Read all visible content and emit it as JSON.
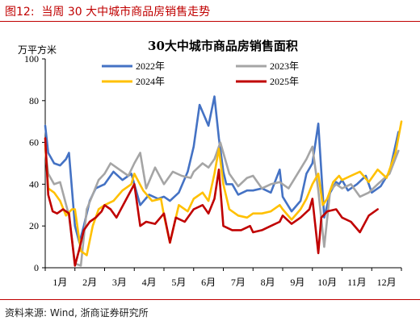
{
  "figure": {
    "label": "图12:  当周 30 大中城市商品房销售走势",
    "source": "资料来源:  Wind, 浙商证券研究所"
  },
  "colors": {
    "accent": "#c00000",
    "s2022": "#4472c4",
    "s2023": "#a5a5a5",
    "s2024": "#ffc000",
    "s2025": "#c00000"
  },
  "chart_data": {
    "type": "line",
    "title": "30大中城市商品房销售面积",
    "ylabel": "万平方米",
    "ylim": [
      0,
      100
    ],
    "yticks": [
      0,
      20,
      40,
      60,
      80,
      100
    ],
    "xlim": [
      1,
      13
    ],
    "xticks": [
      "1月",
      "2月",
      "3月",
      "4月",
      "5月",
      "6月",
      "7月",
      "8月",
      "9月",
      "10月",
      "11月",
      "12月"
    ],
    "grid": false,
    "legend": "top-center",
    "series": [
      {
        "name": "2022年",
        "x": [
          1.0,
          1.1,
          1.3,
          1.5,
          1.7,
          1.8,
          2.0,
          2.15,
          2.3,
          2.5,
          2.7,
          3.0,
          3.3,
          3.6,
          3.9,
          4.0,
          4.2,
          4.5,
          4.8,
          5.0,
          5.2,
          5.5,
          5.8,
          6.0,
          6.2,
          6.5,
          6.7,
          6.85,
          7.0,
          7.1,
          7.3,
          7.5,
          7.8,
          8.0,
          8.3,
          8.6,
          8.9,
          9.0,
          9.3,
          9.6,
          9.8,
          10.0,
          10.2,
          10.4,
          10.6,
          10.8,
          10.9,
          11.0,
          11.2,
          11.5,
          11.8,
          12.0,
          12.3,
          12.6,
          12.9
        ],
        "values": [
          68,
          55,
          50,
          49,
          52,
          55,
          20,
          12,
          20,
          32,
          38,
          40,
          46,
          42,
          45,
          40,
          30,
          35,
          33,
          34,
          32,
          36,
          46,
          58,
          78,
          68,
          82,
          62,
          46,
          40,
          40,
          35,
          37,
          37,
          38,
          36,
          47,
          34,
          27,
          32,
          45,
          50,
          69,
          24,
          36,
          41,
          40,
          42,
          37,
          40,
          44,
          36,
          39,
          46,
          65
        ]
      },
      {
        "name": "2023年",
        "x": [
          1.0,
          1.1,
          1.3,
          1.5,
          1.8,
          2.0,
          2.2,
          2.4,
          2.6,
          2.8,
          3.0,
          3.2,
          3.5,
          3.8,
          4.0,
          4.2,
          4.4,
          4.7,
          5.0,
          5.3,
          5.6,
          5.9,
          6.0,
          6.3,
          6.5,
          6.7,
          6.9,
          7.0,
          7.2,
          7.5,
          7.8,
          8.0,
          8.3,
          8.6,
          8.9,
          9.2,
          9.5,
          9.8,
          10.0,
          10.2,
          10.4,
          10.6,
          10.8,
          11.0,
          11.3,
          11.6,
          11.9,
          12.2,
          12.6,
          12.9
        ],
        "values": [
          57,
          45,
          40,
          41,
          25,
          2,
          1,
          28,
          35,
          42,
          45,
          50,
          47,
          44,
          50,
          55,
          38,
          48,
          40,
          46,
          44,
          43,
          46,
          50,
          48,
          52,
          60,
          55,
          45,
          39,
          43,
          44,
          38,
          40,
          41,
          38,
          45,
          52,
          58,
          37,
          10,
          37,
          40,
          38,
          40,
          34,
          36,
          40,
          45,
          56
        ]
      },
      {
        "name": "2024年",
        "x": [
          1.0,
          1.1,
          1.3,
          1.5,
          1.7,
          1.9,
          2.0,
          2.2,
          2.4,
          2.6,
          2.8,
          3.0,
          3.3,
          3.6,
          3.9,
          4.0,
          4.3,
          4.6,
          4.9,
          5.0,
          5.2,
          5.5,
          5.8,
          6.0,
          6.3,
          6.5,
          6.7,
          6.85,
          7.0,
          7.2,
          7.5,
          7.8,
          8.0,
          8.3,
          8.6,
          8.9,
          9.0,
          9.3,
          9.6,
          9.8,
          10.0,
          10.2,
          10.35,
          10.5,
          10.7,
          10.9,
          11.0,
          11.3,
          11.6,
          11.9,
          12.2,
          12.5,
          12.8,
          13.0
        ],
        "values": [
          59,
          38,
          36,
          32,
          25,
          28,
          28,
          8,
          6,
          20,
          28,
          30,
          32,
          37,
          40,
          45,
          37,
          32,
          33,
          25,
          12,
          30,
          27,
          33,
          36,
          32,
          45,
          57,
          40,
          28,
          25,
          24,
          26,
          26,
          27,
          30,
          28,
          23,
          28,
          33,
          40,
          45,
          30,
          33,
          41,
          44,
          42,
          44,
          46,
          41,
          47,
          43,
          55,
          70
        ]
      },
      {
        "name": "2025年",
        "x": [
          1.0,
          1.1,
          1.25,
          1.4,
          1.6,
          1.8,
          2.0,
          2.15,
          2.3,
          2.5,
          2.7,
          2.9,
          3.0,
          3.2,
          3.4,
          3.7,
          4.0,
          4.2,
          4.4,
          4.7,
          5.0,
          5.2,
          5.4,
          5.7,
          6.0,
          6.3,
          6.5,
          6.7,
          6.85,
          7.0,
          7.3,
          7.6,
          7.9,
          8.0,
          8.3,
          8.6,
          8.9,
          9.0,
          9.3,
          9.6,
          9.9,
          10.0,
          10.2,
          10.3,
          10.5,
          10.8,
          11.0,
          11.3,
          11.6,
          11.9,
          12.2
        ],
        "values": [
          62,
          35,
          27,
          26,
          28,
          26,
          1,
          9,
          18,
          22,
          24,
          27,
          30,
          28,
          24,
          32,
          40,
          20,
          22,
          21,
          26,
          12,
          24,
          22,
          28,
          30,
          26,
          33,
          47,
          20,
          18,
          18,
          20,
          17,
          18,
          20,
          22,
          25,
          21,
          24,
          28,
          33,
          7,
          24,
          27,
          28,
          24,
          22,
          17,
          25,
          28
        ]
      }
    ]
  }
}
